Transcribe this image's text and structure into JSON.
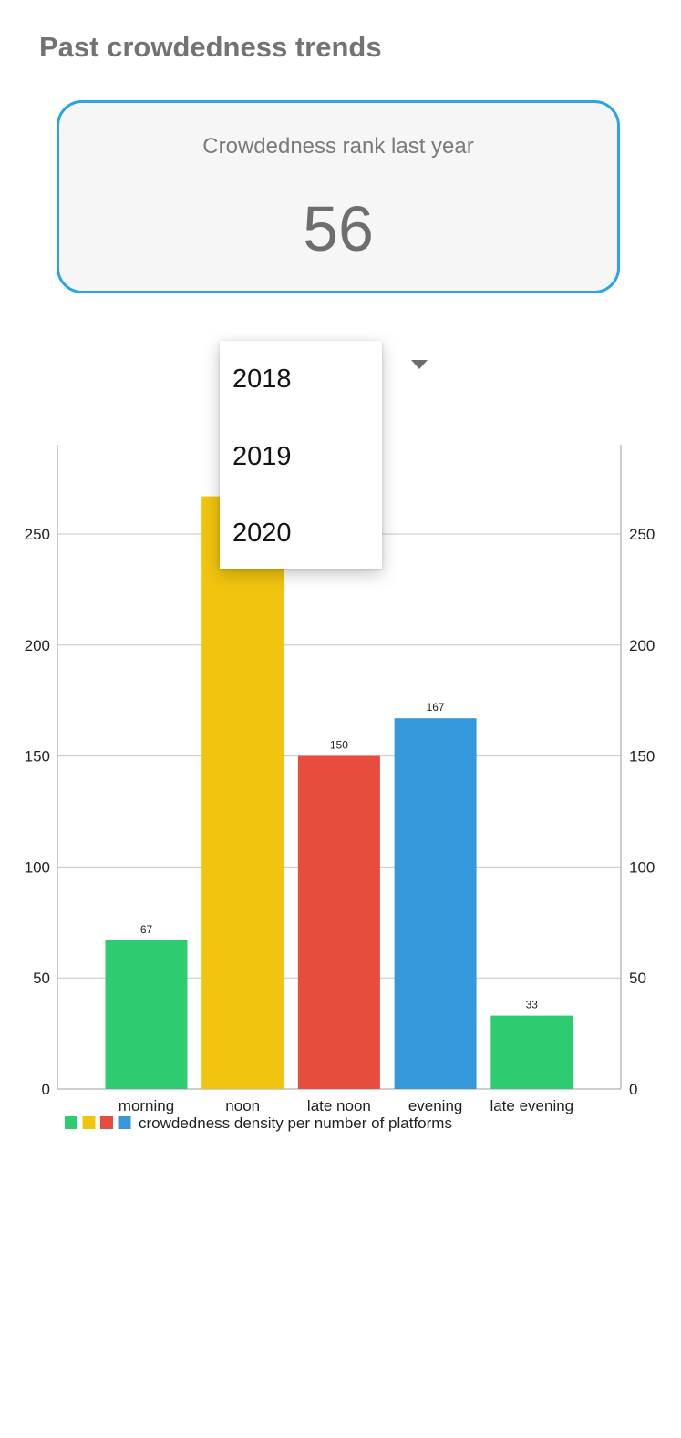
{
  "page": {
    "title": "Past crowdedness trends"
  },
  "rank_card": {
    "label": "Crowdedness rank last year",
    "value": "56"
  },
  "year_dropdown": {
    "options": [
      "2018",
      "2019",
      "2020"
    ]
  },
  "colors": {
    "card_border": "#29a3ea",
    "green": "#2ecc71",
    "yellow": "#f1c40f",
    "red": "#e74c3c",
    "blue": "#3498db"
  },
  "chart_data": {
    "type": "bar",
    "categories": [
      "morning",
      "noon",
      "late noon",
      "evening",
      "late evening"
    ],
    "values": [
      67,
      267,
      150,
      167,
      33
    ],
    "data_labels": [
      "67",
      "",
      "150",
      "167",
      "33"
    ],
    "bar_colors": [
      "#2ecc71",
      "#f1c40f",
      "#e74c3c",
      "#3498db",
      "#2ecc71"
    ],
    "legend_colors": [
      "#2ecc71",
      "#f1c40f",
      "#e74c3c",
      "#3498db"
    ],
    "yticks": [
      0,
      50,
      100,
      150,
      200,
      250
    ],
    "ylim": [
      0,
      290
    ],
    "series": [
      {
        "name": "crowdedness density per number of platforms",
        "values": [
          67,
          267,
          150,
          167,
          33
        ]
      }
    ],
    "legend": "bottom-left",
    "grid": true
  }
}
